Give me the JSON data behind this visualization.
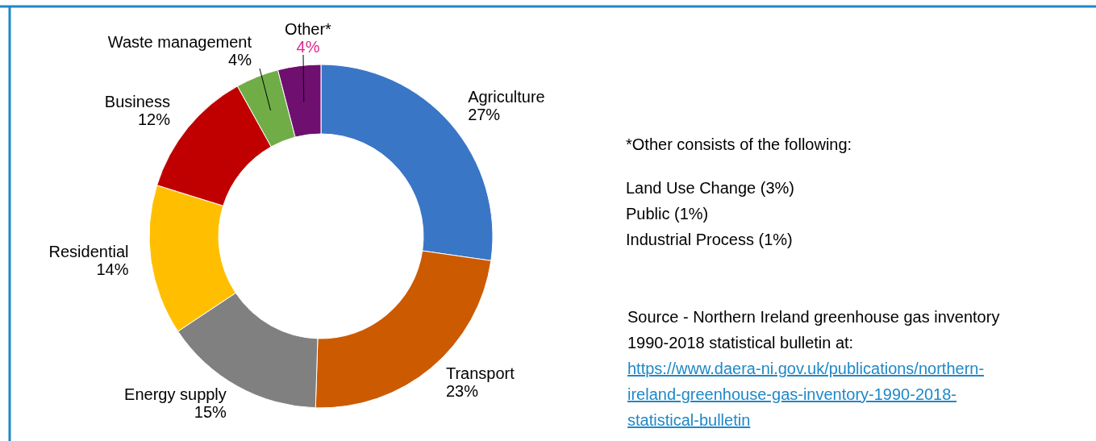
{
  "chart_data": {
    "type": "donut",
    "categories": [
      "Agriculture",
      "Transport",
      "Energy supply",
      "Residential",
      "Business",
      "Waste management",
      "Other*"
    ],
    "values": [
      27,
      23,
      15,
      14,
      12,
      4,
      4
    ],
    "colors": [
      "#3a76c6",
      "#cc5a00",
      "#808080",
      "#ffbf00",
      "#c00000",
      "#70ad47",
      "#6f0f6f"
    ],
    "value_labels": [
      "27%",
      "23%",
      "15%",
      "14%",
      "12%",
      "4%",
      "4%"
    ],
    "annotations": [
      "*Other consists of the following:",
      "Land Use Change (3%)",
      "Public (1%)",
      "Industrial Process (1%)",
      "Source - Northern Ireland greenhouse gas inventory 1990-2018 statistical bulletin at:",
      "https://www.daera-ni.gov.uk/publications/northern-ireland-greenhouse-gas-inventory-1990-2018-statistical-bulletin"
    ]
  }
}
